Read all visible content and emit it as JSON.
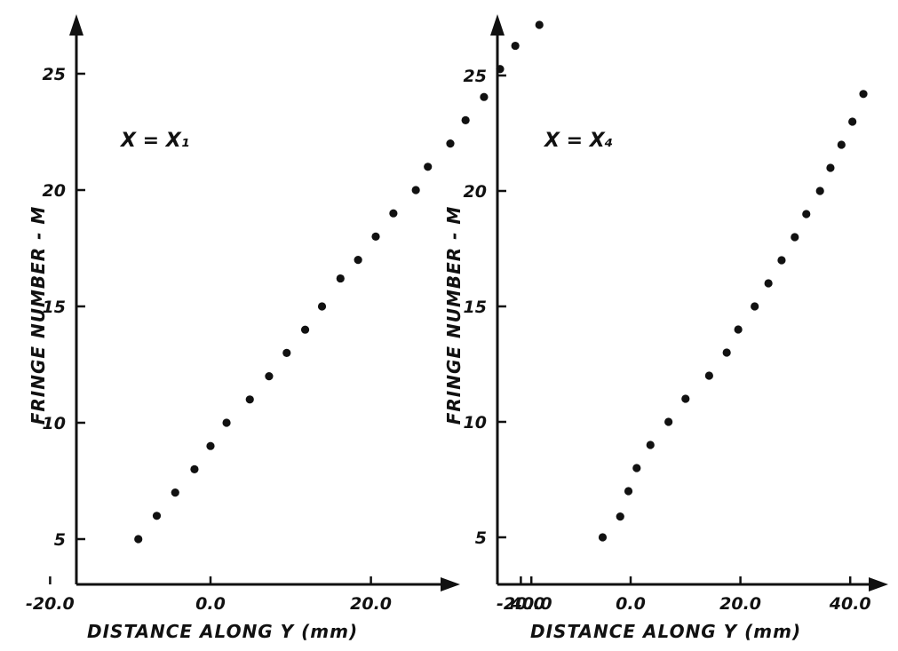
{
  "chart_data": [
    {
      "type": "scatter",
      "annotation": "X = X₁",
      "xlabel": "DISTANCE ALONG Y (mm)",
      "ylabel": "FRINGE NUMBER - M",
      "xlim": [
        -25,
        46
      ],
      "ylim": [
        2.2,
        27.8
      ],
      "xticks": [
        -20,
        0,
        20,
        40
      ],
      "xtick_labels": [
        "-20.0",
        "0.0",
        "20.0",
        "40.0"
      ],
      "yticks": [
        5,
        10,
        15,
        20,
        25
      ],
      "ytick_labels": [
        "5",
        "10",
        "15",
        "20",
        "25"
      ],
      "grid": false,
      "series": [
        {
          "x": [
            -9.0,
            -6.7,
            -4.4,
            -2.0,
            0.0,
            2.0,
            4.9,
            7.3,
            9.5,
            11.8,
            13.9,
            16.2,
            18.4,
            20.6,
            22.8,
            25.6,
            27.1,
            29.9,
            31.8,
            34.1,
            36.1,
            38.0,
            41.0
          ],
          "y": [
            5,
            6,
            7,
            8,
            9,
            10,
            11,
            12,
            13,
            14,
            15,
            16.2,
            17,
            18,
            19,
            20,
            21,
            22,
            23,
            24,
            25.2,
            26.2,
            27.1
          ]
        }
      ]
    },
    {
      "type": "scatter",
      "annotation": "X = X₄",
      "xlabel": "DISTANCE ALONG Y (mm)",
      "ylabel": "FRINGE NUMBER - M",
      "xlim": [
        -25,
        46
      ],
      "ylim": [
        2.2,
        27.8
      ],
      "xticks": [
        -20,
        0,
        20,
        40
      ],
      "xtick_labels": [
        "-20.0",
        "0.0",
        "20.0",
        "40.0"
      ],
      "yticks": [
        5,
        10,
        15,
        20,
        25
      ],
      "ytick_labels": [
        "5",
        "10",
        "15",
        "20",
        "25"
      ],
      "grid": false,
      "series": [
        {
          "x": [
            -5.1,
            -1.9,
            -0.4,
            1.1,
            3.6,
            6.9,
            10.0,
            14.3,
            17.5,
            19.6,
            22.6,
            25.1,
            27.5,
            29.9,
            32.0,
            34.5,
            36.4,
            38.4,
            40.4,
            42.4
          ],
          "y": [
            5,
            5.9,
            7,
            8,
            9,
            10,
            11,
            12,
            13,
            14,
            15,
            16,
            17,
            18,
            19,
            20,
            21,
            22,
            23,
            24.2
          ]
        }
      ]
    }
  ]
}
